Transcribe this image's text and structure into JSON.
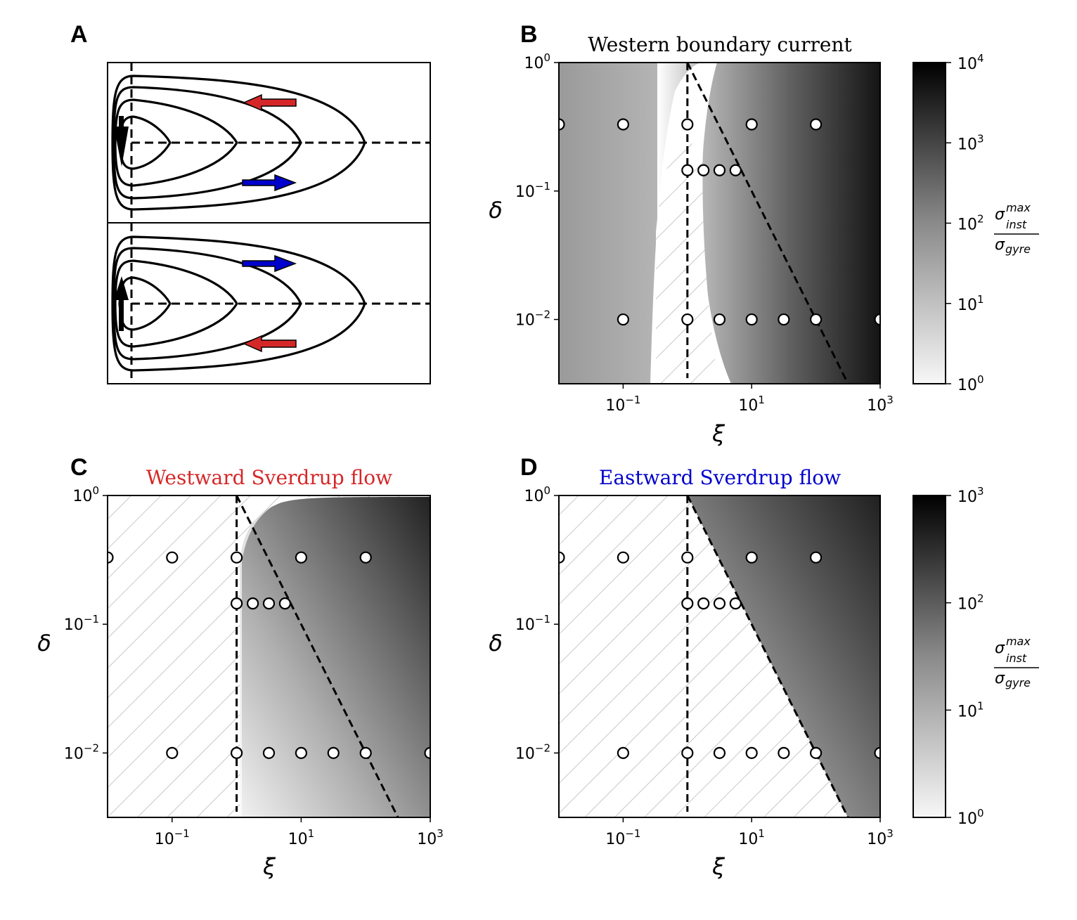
{
  "figure": {
    "panels": {
      "A": {
        "letter": "A"
      },
      "B": {
        "letter": "B",
        "title": "Western boundary current",
        "title_color": "#000000"
      },
      "C": {
        "letter": "C",
        "title": "Westward Sverdrup flow",
        "title_color": "#d62728"
      },
      "D": {
        "letter": "D",
        "title": "Eastward Sverdrup flow",
        "title_color": "#0000cc"
      }
    },
    "colors": {
      "westward_arrow": "#d62728",
      "eastward_arrow": "#0000cc",
      "boundary_arrow": "#000000",
      "hatch": "#cccccc"
    }
  },
  "chart_data": [
    {
      "panel": "A",
      "type": "diagram",
      "description": "Schematic of double-gyre streamlines in a rectangular basin; top gyre with southward western boundary current, bottom gyre with northward western boundary current",
      "subpanels": [
        {
          "name": "top",
          "boundary_arrow": "down",
          "arrows": [
            {
              "direction": "west",
              "color": "red",
              "position": "upper"
            },
            {
              "direction": "east",
              "color": "blue",
              "position": "lower"
            }
          ]
        },
        {
          "name": "bottom",
          "boundary_arrow": "up",
          "arrows": [
            {
              "direction": "east",
              "color": "blue",
              "position": "upper"
            },
            {
              "direction": "west",
              "color": "red",
              "position": "lower"
            }
          ]
        }
      ],
      "streamline_count": 4
    },
    {
      "panel": "B",
      "type": "heatmap",
      "title": "Western boundary current",
      "xlabel": "ξ",
      "ylabel": "δ",
      "xscale": "log",
      "yscale": "log",
      "xlim": [
        0.01,
        1000
      ],
      "ylim": [
        0.00316,
        1
      ],
      "xticks": [
        {
          "exp": "−1",
          "value": 0.1
        },
        {
          "exp": "1",
          "value": 10
        },
        {
          "exp": "3",
          "value": 1000
        }
      ],
      "yticks": [
        {
          "exp": "0",
          "value": 1
        },
        {
          "exp": "−1",
          "value": 0.1
        },
        {
          "exp": "−2",
          "value": 0.01
        }
      ],
      "colorbar": {
        "label_num": "σ",
        "label_num_sup": "max",
        "label_num_sub": "inst",
        "label_den": "σ",
        "label_den_sub": "gyre",
        "scale": "log",
        "range": [
          1,
          10000
        ],
        "ticks": [
          {
            "exp": "0",
            "value": 1
          },
          {
            "exp": "1",
            "value": 10
          },
          {
            "exp": "2",
            "value": 100
          },
          {
            "exp": "3",
            "value": 1000
          },
          {
            "exp": "4",
            "value": 10000
          }
        ]
      },
      "hatched_region": "stable band approx 0.3 < ξ < 3",
      "vertical_dashed_line_xi": 1,
      "diagonal_dashed_line": {
        "from": [
          1,
          1
        ],
        "to": [
          316,
          0.00316
        ],
        "relation": "δ = 1/ξ"
      },
      "points": [
        {
          "xi": 0.01,
          "delta": 0.33
        },
        {
          "xi": 0.1,
          "delta": 0.33
        },
        {
          "xi": 1,
          "delta": 0.33
        },
        {
          "xi": 10,
          "delta": 0.33
        },
        {
          "xi": 100,
          "delta": 0.33
        },
        {
          "xi": 1,
          "delta": 0.145
        },
        {
          "xi": 1.78,
          "delta": 0.145
        },
        {
          "xi": 3.16,
          "delta": 0.145
        },
        {
          "xi": 5.62,
          "delta": 0.145
        },
        {
          "xi": 0.1,
          "delta": 0.01
        },
        {
          "xi": 1,
          "delta": 0.01
        },
        {
          "xi": 3.16,
          "delta": 0.01
        },
        {
          "xi": 10,
          "delta": 0.01
        },
        {
          "xi": 31.6,
          "delta": 0.01
        },
        {
          "xi": 100,
          "delta": 0.01
        },
        {
          "xi": 1000,
          "delta": 0.01
        }
      ]
    },
    {
      "panel": "C",
      "type": "heatmap",
      "title": "Westward Sverdrup flow",
      "xlabel": "ξ",
      "ylabel": "δ",
      "xscale": "log",
      "yscale": "log",
      "xlim": [
        0.01,
        1000
      ],
      "ylim": [
        0.00316,
        1
      ],
      "xticks": [
        {
          "exp": "−1",
          "value": 0.1
        },
        {
          "exp": "1",
          "value": 10
        },
        {
          "exp": "3",
          "value": 1000
        }
      ],
      "yticks": [
        {
          "exp": "0",
          "value": 1
        },
        {
          "exp": "−1",
          "value": 0.1
        },
        {
          "exp": "−2",
          "value": 0.01
        }
      ],
      "colorbar_shared_with": "D",
      "hatched_region": "ξ < 1 (stable)",
      "vertical_dashed_line_xi": 1,
      "diagonal_dashed_line": {
        "from": [
          1,
          1
        ],
        "to": [
          316,
          0.00316
        ],
        "relation": "δ = 1/ξ"
      },
      "points": [
        {
          "xi": 0.01,
          "delta": 0.33
        },
        {
          "xi": 0.1,
          "delta": 0.33
        },
        {
          "xi": 1,
          "delta": 0.33
        },
        {
          "xi": 10,
          "delta": 0.33
        },
        {
          "xi": 100,
          "delta": 0.33
        },
        {
          "xi": 1,
          "delta": 0.145
        },
        {
          "xi": 1.78,
          "delta": 0.145
        },
        {
          "xi": 3.16,
          "delta": 0.145
        },
        {
          "xi": 5.62,
          "delta": 0.145
        },
        {
          "xi": 0.1,
          "delta": 0.01
        },
        {
          "xi": 1,
          "delta": 0.01
        },
        {
          "xi": 3.16,
          "delta": 0.01
        },
        {
          "xi": 10,
          "delta": 0.01
        },
        {
          "xi": 31.6,
          "delta": 0.01
        },
        {
          "xi": 100,
          "delta": 0.01
        },
        {
          "xi": 1000,
          "delta": 0.01
        }
      ]
    },
    {
      "panel": "D",
      "type": "heatmap",
      "title": "Eastward Sverdrup flow",
      "xlabel": "ξ",
      "ylabel": "δ",
      "xscale": "log",
      "yscale": "log",
      "xlim": [
        0.01,
        1000
      ],
      "ylim": [
        0.00316,
        1
      ],
      "xticks": [
        {
          "exp": "−1",
          "value": 0.1
        },
        {
          "exp": "1",
          "value": 10
        },
        {
          "exp": "3",
          "value": 1000
        }
      ],
      "yticks": [
        {
          "exp": "0",
          "value": 1
        },
        {
          "exp": "−1",
          "value": 0.1
        },
        {
          "exp": "−2",
          "value": 0.01
        }
      ],
      "colorbar": {
        "label_num": "σ",
        "label_num_sup": "max",
        "label_num_sub": "inst",
        "label_den": "σ",
        "label_den_sub": "gyre",
        "scale": "log",
        "range": [
          1,
          1000
        ],
        "ticks": [
          {
            "exp": "0",
            "value": 1
          },
          {
            "exp": "1",
            "value": 10
          },
          {
            "exp": "2",
            "value": 100
          },
          {
            "exp": "3",
            "value": 1000
          }
        ]
      },
      "hatched_region": "δ < 1/ξ (stable)",
      "vertical_dashed_line_xi": 1,
      "diagonal_dashed_line": {
        "from": [
          1,
          1
        ],
        "to": [
          316,
          0.00316
        ],
        "relation": "δ = 1/ξ"
      },
      "points": [
        {
          "xi": 0.01,
          "delta": 0.33
        },
        {
          "xi": 0.1,
          "delta": 0.33
        },
        {
          "xi": 1,
          "delta": 0.33
        },
        {
          "xi": 10,
          "delta": 0.33
        },
        {
          "xi": 100,
          "delta": 0.33
        },
        {
          "xi": 1,
          "delta": 0.145
        },
        {
          "xi": 1.78,
          "delta": 0.145
        },
        {
          "xi": 3.16,
          "delta": 0.145
        },
        {
          "xi": 5.62,
          "delta": 0.145
        },
        {
          "xi": 0.1,
          "delta": 0.01
        },
        {
          "xi": 1,
          "delta": 0.01
        },
        {
          "xi": 3.16,
          "delta": 0.01
        },
        {
          "xi": 10,
          "delta": 0.01
        },
        {
          "xi": 31.6,
          "delta": 0.01
        },
        {
          "xi": 100,
          "delta": 0.01
        },
        {
          "xi": 1000,
          "delta": 0.01
        }
      ]
    }
  ]
}
